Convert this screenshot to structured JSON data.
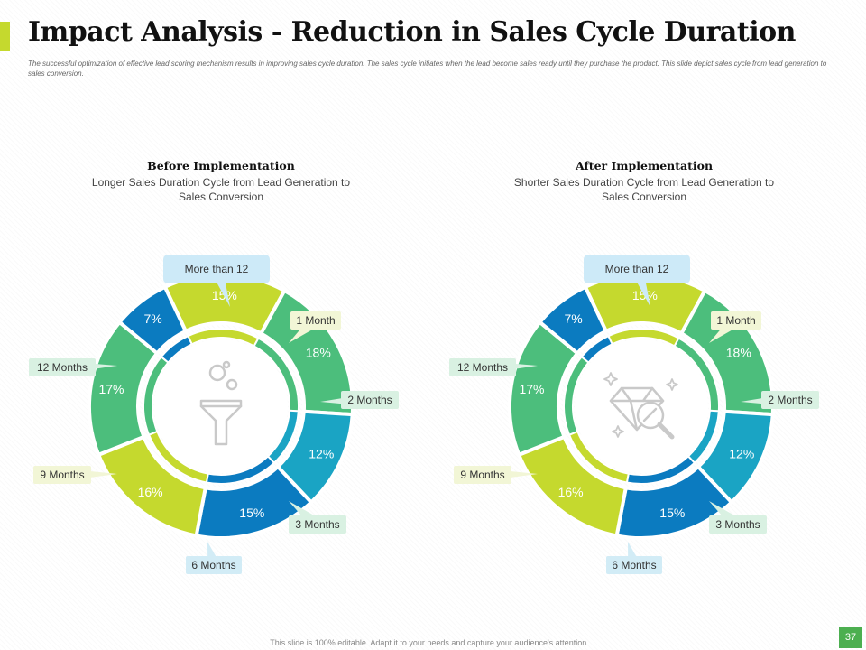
{
  "header": {
    "title": "Impact Analysis - Reduction in Sales Cycle Duration",
    "description": "The successful optimization of effective lead scoring mechanism results in improving sales cycle duration. The sales cycle initiates when the lead become sales ready until they purchase the product. This slide depict sales cycle from lead generation to sales conversion."
  },
  "colors": {
    "accent_bar": "#c5d92e",
    "lime": "#c5d92e",
    "green": "#4cbe7c",
    "teal": "#1aa4c4",
    "blue": "#0b7bc0",
    "label_green_bg": "#d9f1e2",
    "label_yellow_bg": "#f2f6d6",
    "label_blue_bg": "#d2ecf6",
    "callout_bg": "#cdeaf8",
    "page_num_bg": "#4caf50"
  },
  "chart_data": [
    {
      "type": "pie",
      "title": "Before Implementation",
      "subtitle": "Longer Sales Duration Cycle from Lead Generation to Sales Conversion",
      "center_icon": "funnel-icon",
      "categories": [
        "1 Month",
        "2 Months",
        "3 Months",
        "6 Months",
        "9 Months",
        "12 Months",
        "More than 12"
      ],
      "values": [
        15,
        18,
        12,
        15,
        16,
        17,
        7
      ],
      "value_labels": [
        "15%",
        "18%",
        "12%",
        "15%",
        "16%",
        "17%",
        "7%"
      ],
      "slice_colors": [
        "#c5d92e",
        "#4cbe7c",
        "#1aa4c4",
        "#0b7bc0",
        "#c5d92e",
        "#4cbe7c",
        "#0b7bc0"
      ],
      "label_bg": [
        "#f2f6d6",
        "#d9f1e2",
        "#d9f1e2",
        "#d2ecf6",
        "#f2f6d6",
        "#d9f1e2",
        "#cdeaf8"
      ]
    },
    {
      "type": "pie",
      "title": "After Implementation",
      "subtitle": "Shorter Sales Duration Cycle from Lead Generation to Sales Conversion",
      "center_icon": "diamond-search-icon",
      "categories": [
        "1 Month",
        "2 Months",
        "3 Months",
        "6 Months",
        "9 Months",
        "12 Months",
        "More than 12"
      ],
      "values": [
        15,
        18,
        12,
        15,
        16,
        17,
        7
      ],
      "value_labels": [
        "15%",
        "18%",
        "12%",
        "15%",
        "16%",
        "17%",
        "7%"
      ],
      "slice_colors": [
        "#c5d92e",
        "#4cbe7c",
        "#1aa4c4",
        "#0b7bc0",
        "#c5d92e",
        "#4cbe7c",
        "#0b7bc0"
      ],
      "label_bg": [
        "#f2f6d6",
        "#d9f1e2",
        "#d9f1e2",
        "#d2ecf6",
        "#f2f6d6",
        "#d9f1e2",
        "#cdeaf8"
      ]
    }
  ],
  "footer": {
    "note": "This slide is 100% editable. Adapt it to your needs and capture your audience's attention.",
    "page_number": "37"
  }
}
